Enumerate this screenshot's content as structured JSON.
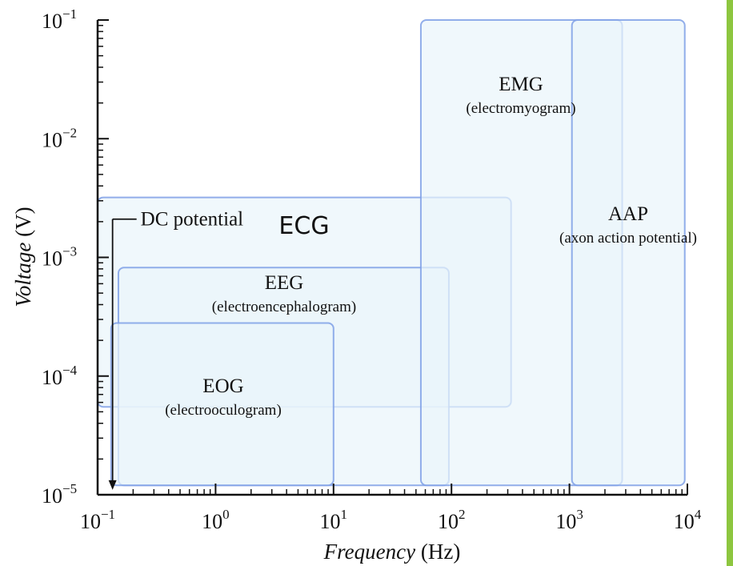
{
  "chart_data": {
    "type": "area",
    "x_scale": "log",
    "y_scale": "log",
    "xlim": [
      0.1,
      10000
    ],
    "ylim": [
      1e-05,
      0.1
    ],
    "xlabel": "Frequency",
    "xlabel_unit": "(Hz)",
    "ylabel": "Voltage",
    "ylabel_unit": "(V)",
    "x_ticks": [
      {
        "base": "10",
        "exp": "−1"
      },
      {
        "base": "10",
        "exp": "0"
      },
      {
        "base": "10",
        "exp": "1"
      },
      {
        "base": "10",
        "exp": "2"
      },
      {
        "base": "10",
        "exp": "3"
      },
      {
        "base": "10",
        "exp": "4"
      }
    ],
    "y_ticks": [
      {
        "base": "10",
        "exp": "−5"
      },
      {
        "base": "10",
        "exp": "−4"
      },
      {
        "base": "10",
        "exp": "−3"
      },
      {
        "base": "10",
        "exp": "−2"
      },
      {
        "base": "10",
        "exp": "−1"
      }
    ],
    "regions": [
      {
        "name": "ECG",
        "subtitle": "",
        "x": [
          0.1,
          320
        ],
        "y": [
          5.5e-05,
          0.0032
        ]
      },
      {
        "name": "EEG",
        "subtitle": "(electroencephalogram)",
        "x": [
          0.15,
          95
        ],
        "y": [
          1.2e-05,
          0.00082
        ]
      },
      {
        "name": "EOG",
        "subtitle": "(electrooculogram)",
        "x": [
          0.13,
          10
        ],
        "y": [
          1.2e-05,
          0.00028
        ]
      },
      {
        "name": "EMG",
        "subtitle": "(electromyogram)",
        "x": [
          55,
          2800
        ],
        "y": [
          1.2e-05,
          0.1
        ]
      },
      {
        "name": "AAP",
        "subtitle": "(axon action potential)",
        "x": [
          1050,
          9500
        ],
        "y": [
          1.2e-05,
          0.1
        ]
      }
    ],
    "annotations": [
      {
        "text": "DC potential",
        "x": 0.12,
        "y_from": 0.0021,
        "y_to": 1.1e-05
      }
    ],
    "colors": {
      "region_fill": "#eaf5fb",
      "region_stroke": "#7fa0e6",
      "axis": "#111111"
    }
  }
}
